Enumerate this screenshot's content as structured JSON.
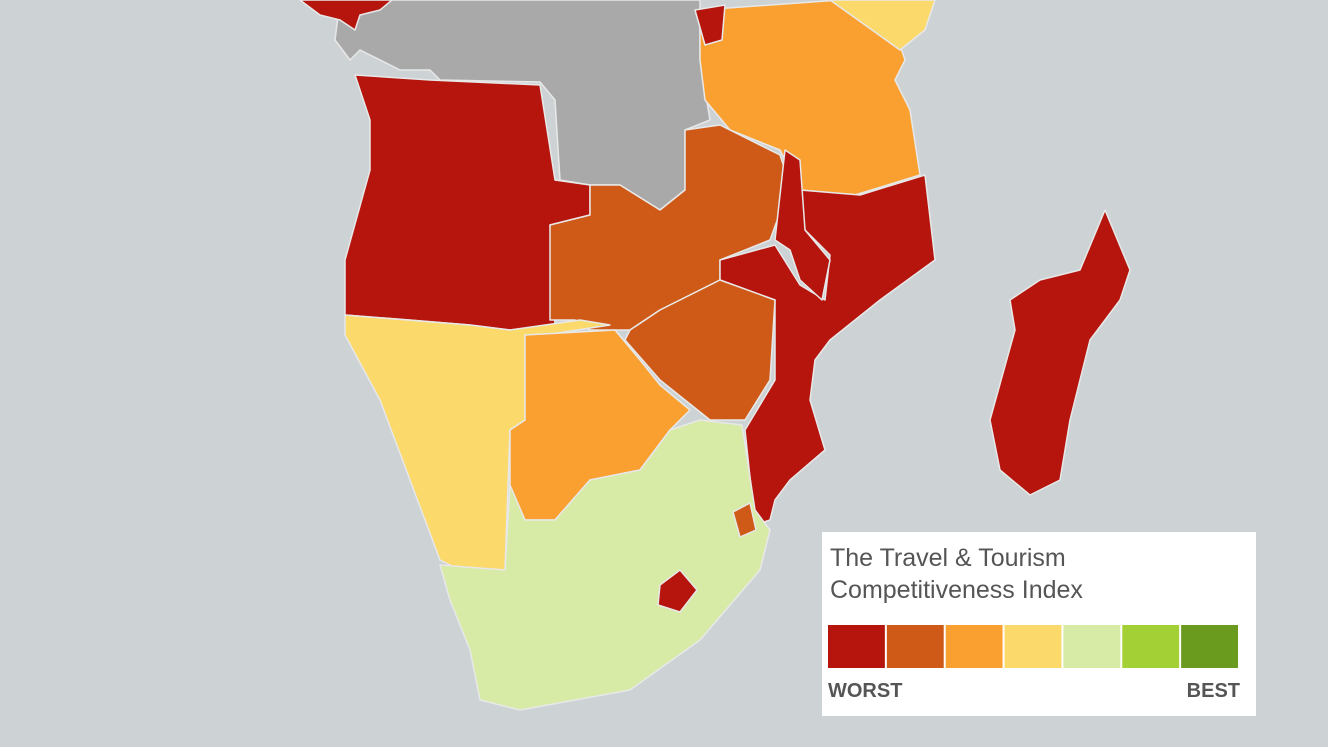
{
  "legend": {
    "title": [
      "The Travel & Tourism",
      "Competitiveness Index"
    ],
    "low_label": "WORST",
    "high_label": "BEST",
    "colors": [
      "#b5150d",
      "#cf5a17",
      "#f9a030",
      "#fbd96a",
      "#d7eaa6",
      "#a3d034",
      "#6a9a1e"
    ]
  }
}
